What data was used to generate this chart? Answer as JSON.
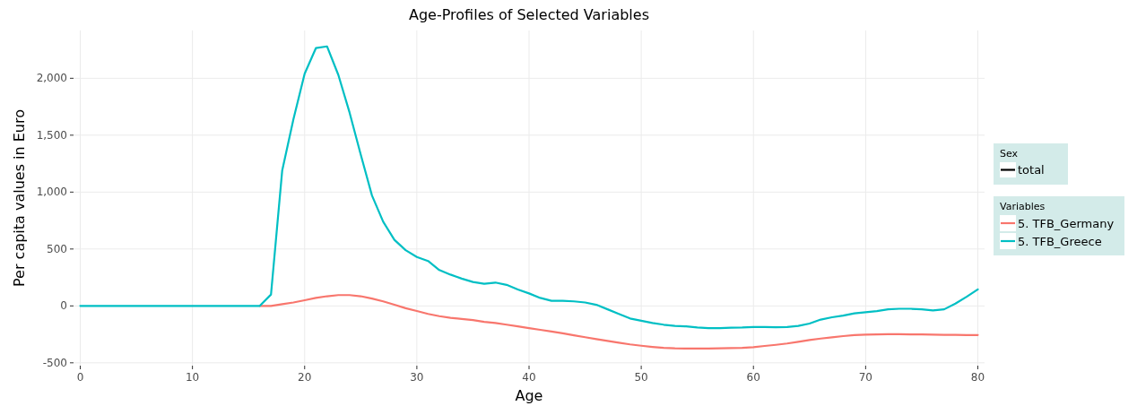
{
  "chart_data": {
    "type": "line",
    "title": "Age-Profiles of Selected Variables",
    "xlabel": "Age",
    "ylabel": "Per capita values in Euro",
    "legend_title": "Variables",
    "legend": "right",
    "grid": true,
    "line_style": "solid",
    "marker": "none",
    "annotations": [
      "Sex",
      "total"
    ],
    "x": [
      0,
      1,
      2,
      3,
      4,
      5,
      6,
      7,
      8,
      9,
      10,
      11,
      12,
      13,
      14,
      15,
      16,
      17,
      18,
      19,
      20,
      21,
      22,
      23,
      24,
      25,
      26,
      27,
      28,
      29,
      30,
      31,
      32,
      33,
      34,
      35,
      36,
      37,
      38,
      39,
      40,
      41,
      42,
      43,
      44,
      45,
      46,
      47,
      48,
      49,
      50,
      51,
      52,
      53,
      54,
      55,
      56,
      57,
      58,
      59,
      60,
      61,
      62,
      63,
      64,
      65,
      66,
      67,
      68,
      69,
      70,
      71,
      72,
      73,
      74,
      75,
      76,
      77,
      78,
      79,
      80
    ],
    "xlim": [
      -0.6,
      80.6
    ],
    "xticks": [
      0,
      10,
      20,
      30,
      40,
      50,
      60,
      70,
      80
    ],
    "ylim": [
      -525,
      2420
    ],
    "yticks": [
      {
        "value": -500,
        "label": "-500"
      },
      0,
      500,
      {
        "value": 1000,
        "label": "1,000"
      },
      {
        "value": 1500,
        "label": "1,500"
      },
      {
        "value": 2000,
        "label": "2,000"
      }
    ],
    "series": [
      {
        "name": "5. TFB_Germany",
        "color": "#f8766d",
        "values": [
          null,
          null,
          null,
          null,
          null,
          null,
          null,
          null,
          null,
          null,
          null,
          null,
          null,
          null,
          null,
          null,
          0,
          0,
          15,
          30,
          50,
          70,
          85,
          95,
          95,
          85,
          65,
          40,
          10,
          -20,
          -45,
          -70,
          -90,
          -105,
          -115,
          -125,
          -140,
          -150,
          -165,
          -180,
          -195,
          -210,
          -225,
          -240,
          -258,
          -275,
          -292,
          -308,
          -323,
          -338,
          -350,
          -360,
          -368,
          -373,
          -375,
          -375,
          -374,
          -372,
          -370,
          -368,
          -362,
          -352,
          -342,
          -330,
          -315,
          -300,
          -287,
          -276,
          -265,
          -257,
          -252,
          -250,
          -249,
          -249,
          -250,
          -251,
          -253,
          -255,
          -255,
          -256,
          -256
        ]
      },
      {
        "name": "5. TFB_Greece",
        "color": "#00bfc4",
        "values": [
          0,
          0,
          0,
          0,
          0,
          0,
          0,
          0,
          0,
          0,
          0,
          0,
          0,
          0,
          0,
          0,
          0,
          100,
          1190,
          1640,
          2040,
          2265,
          2280,
          2030,
          1700,
          1330,
          970,
          740,
          580,
          490,
          430,
          395,
          315,
          275,
          240,
          210,
          195,
          205,
          185,
          145,
          110,
          70,
          45,
          45,
          40,
          30,
          10,
          -30,
          -70,
          -110,
          -130,
          -150,
          -165,
          -175,
          -180,
          -190,
          -195,
          -195,
          -192,
          -190,
          -185,
          -185,
          -188,
          -185,
          -175,
          -155,
          -120,
          -100,
          -85,
          -65,
          -55,
          -45,
          -30,
          -25,
          -25,
          -30,
          -40,
          -30,
          20,
          80,
          145
        ]
      }
    ]
  }
}
